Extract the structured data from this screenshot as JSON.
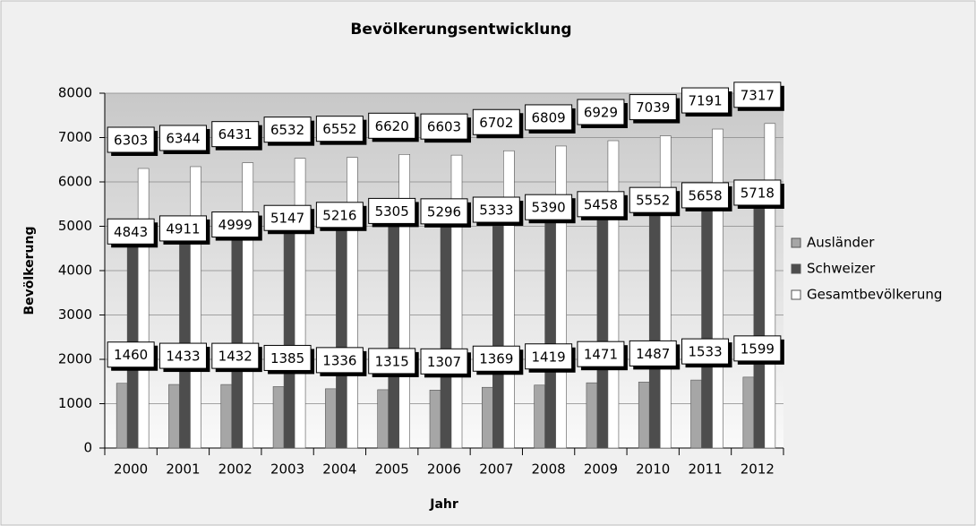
{
  "chart_data": {
    "type": "bar",
    "title": "Bevölkerungsentwicklung",
    "x_label": "Jahr",
    "y_label": "Bevölkerung",
    "categories": [
      "2000",
      "2001",
      "2002",
      "2003",
      "2004",
      "2005",
      "2006",
      "2007",
      "2008",
      "2009",
      "2010",
      "2011",
      "2012"
    ],
    "series": [
      {
        "name": "Ausländer",
        "color": "#a6a6a6",
        "values": [
          1460,
          1433,
          1432,
          1385,
          1336,
          1315,
          1307,
          1369,
          1419,
          1471,
          1487,
          1533,
          1599
        ]
      },
      {
        "name": "Schweizer",
        "color": "#4d4d4d",
        "values": [
          4843,
          4911,
          4999,
          5147,
          5216,
          5305,
          5296,
          5333,
          5390,
          5458,
          5552,
          5658,
          5718
        ]
      },
      {
        "name": "Gesamtbevölkerung",
        "color": "#ffffff",
        "values": [
          6303,
          6344,
          6431,
          6532,
          6552,
          6620,
          6603,
          6702,
          6809,
          6929,
          7039,
          7191,
          7317
        ]
      }
    ],
    "ylim": [
      0,
      8000
    ],
    "yticks": [
      0,
      1000,
      2000,
      3000,
      4000,
      5000,
      6000,
      7000,
      8000
    ],
    "grid": true,
    "legend": "right"
  }
}
